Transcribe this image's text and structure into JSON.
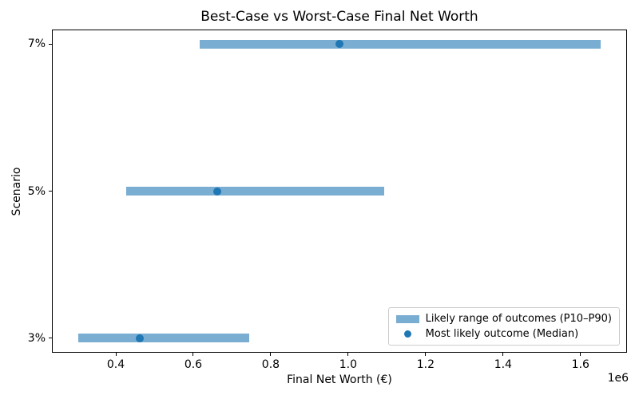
{
  "chart_data": {
    "type": "bar",
    "orientation": "horizontal",
    "title": "Best-Case vs Worst-Case Final Net Worth",
    "xlabel": "Final Net Worth (€)",
    "ylabel": "Scenario",
    "x_offset_label": "1e6",
    "categories": [
      "3%",
      "5%",
      "7%"
    ],
    "series": [
      {
        "name": "P10",
        "values": [
          303000,
          427000,
          617000
        ]
      },
      {
        "name": "Median",
        "values": [
          462000,
          662000,
          977000
        ]
      },
      {
        "name": "P90",
        "values": [
          744000,
          1093000,
          1652000
        ]
      }
    ],
    "xlim": [
      235000,
      1720000
    ],
    "xticks": [
      400000,
      600000,
      800000,
      1000000,
      1200000,
      1400000,
      1600000
    ],
    "xtick_labels": [
      "0.4",
      "0.6",
      "0.8",
      "1.0",
      "1.2",
      "1.4",
      "1.6"
    ],
    "grid": false,
    "legend": {
      "position": "lower right",
      "entries": [
        {
          "label": "Likely range of outcomes (P10–P90)",
          "marker": "patch",
          "color": "#79add2"
        },
        {
          "label": "Most likely outcome (Median)",
          "marker": "dot",
          "color": "#1f77b4"
        }
      ]
    },
    "colors": {
      "range_bar": "#79add2",
      "median_dot": "#1f77b4",
      "axis": "#000000",
      "background": "#ffffff"
    }
  }
}
